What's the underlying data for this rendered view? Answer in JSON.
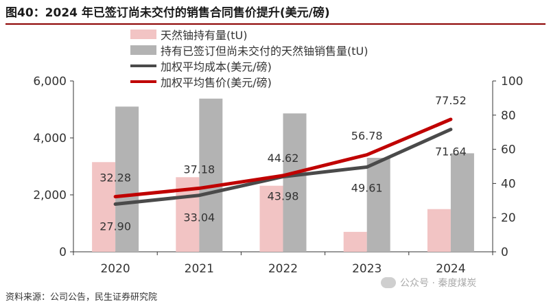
{
  "header": {
    "title": "图40：2024 年已签订尚未交付的销售合同售价提升(美元/磅)"
  },
  "footer": {
    "source": "资料来源：公司公告，民生证券研究院",
    "watermark": "公众号 · 秦度煤炭"
  },
  "colors": {
    "inventory": "#f2c4c4",
    "contracted": "#b3b3b3",
    "cost": "#4a4a4a",
    "price": "#c00000",
    "axis": "#333333"
  },
  "chart_data": {
    "type": "bar",
    "title": "图40：2024 年已签订尚未交付的销售合同售价提升(美元/磅)",
    "categories": [
      "2020",
      "2021",
      "2022",
      "2023",
      "2024"
    ],
    "y_left": {
      "ylim": [
        0,
        6000
      ],
      "ticks": [
        "0",
        "2,000",
        "4,000",
        "6,000"
      ],
      "tick_values": [
        0,
        2000,
        4000,
        6000
      ]
    },
    "y_right": {
      "ylim": [
        0,
        100
      ],
      "ticks": [
        "0",
        "20",
        "40",
        "60",
        "80",
        "100"
      ],
      "tick_values": [
        0,
        20,
        40,
        60,
        80,
        100
      ]
    },
    "series": [
      {
        "name": "天然铀持有量(tU)",
        "kind": "bar",
        "axis": "left",
        "values": [
          3150,
          2620,
          2320,
          700,
          1500
        ]
      },
      {
        "name": "持有已签订但尚未交付的天然铀销售量(tU)",
        "kind": "bar",
        "axis": "left",
        "values": [
          5100,
          5380,
          4860,
          3300,
          3460
        ]
      },
      {
        "name": "加权平均成本(美元/磅)",
        "kind": "line",
        "axis": "right",
        "values": [
          27.9,
          33.04,
          43.98,
          49.61,
          71.64
        ],
        "labels": [
          "27.90",
          "33.04",
          "43.98",
          "49.61",
          "71.64"
        ]
      },
      {
        "name": "加权平均售价(美元/磅)",
        "kind": "line",
        "axis": "right",
        "values": [
          32.28,
          37.18,
          44.62,
          56.78,
          77.52
        ],
        "labels": [
          "32.28",
          "37.18",
          "44.62",
          "56.78",
          "77.52"
        ]
      }
    ]
  }
}
